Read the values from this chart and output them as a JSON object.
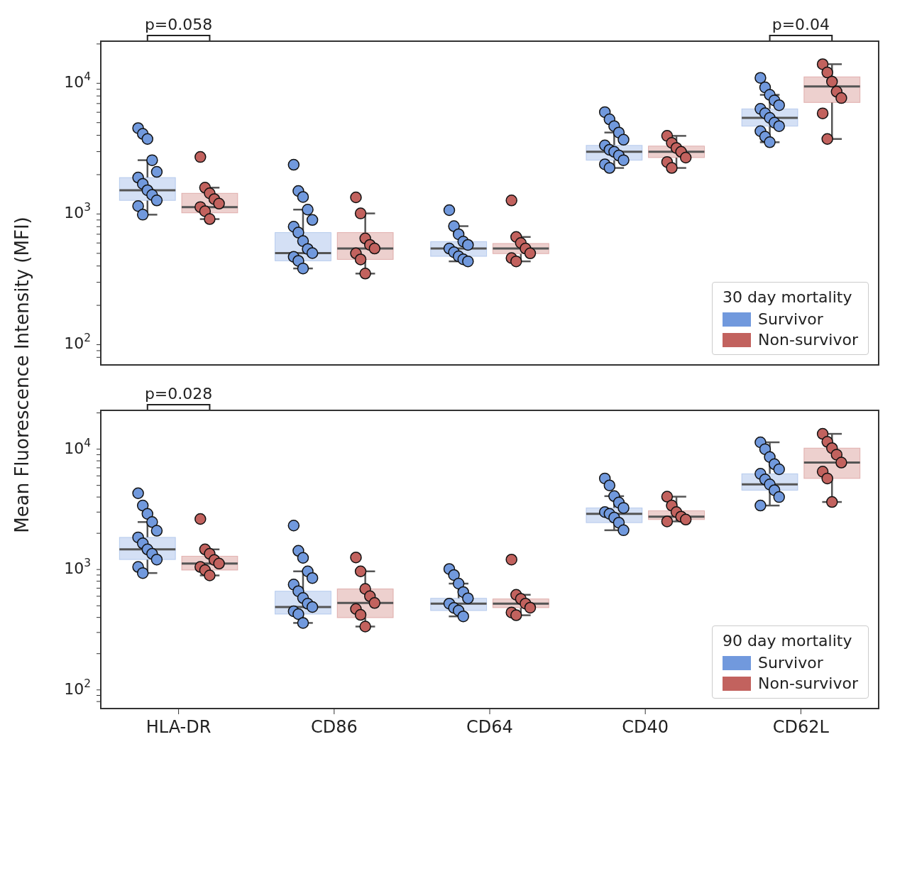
{
  "chart_data": [
    {
      "type": "box",
      "ylabel": "Mean Fluorescence Intensity (MFI)",
      "legend_title": "30 day mortality",
      "legend": "bottom right",
      "log": "y",
      "tick_labels": "y",
      "marker": "circle",
      "categories": [
        "HLA-DR",
        "CD86",
        "CD64",
        "CD40",
        "CD62L"
      ],
      "ylim": [
        70,
        21000
      ],
      "yticks": [
        {
          "value": 80,
          "label": null
        },
        {
          "value": 90,
          "label": null
        },
        {
          "value": 100,
          "label": "10$^{2}$"
        },
        {
          "value": 200,
          "label": null
        },
        {
          "value": 300,
          "label": null
        },
        {
          "value": 400,
          "label": null
        },
        {
          "value": 500,
          "label": null
        },
        {
          "value": 600,
          "label": null
        },
        {
          "value": 700,
          "label": null
        },
        {
          "value": 800,
          "label": null
        },
        {
          "value": 900,
          "label": null
        },
        {
          "value": 1000,
          "label": "10$^{3}$"
        },
        {
          "value": 2000,
          "label": null
        },
        {
          "value": 3000,
          "label": null
        },
        {
          "value": 4000,
          "label": null
        },
        {
          "value": 5000,
          "label": null
        },
        {
          "value": 6000,
          "label": null
        },
        {
          "value": 7000,
          "label": null
        },
        {
          "value": 8000,
          "label": null
        },
        {
          "value": 9000,
          "label": null
        },
        {
          "value": 10000,
          "label": "10$^{4}$"
        },
        {
          "value": 20000,
          "label": null
        }
      ],
      "annotations": [
        "p=0.058",
        "p=0.04"
      ],
      "series": [
        {
          "name": "Survivor",
          "color": "#7199dd",
          "boxes": [
            {
              "low": 988,
              "q1": 1270,
              "median": 1520,
              "q3": 1900,
              "high": 2580
            },
            {
              "low": 383,
              "q1": 438,
              "median": 502,
              "q3": 721,
              "high": 1080
            },
            {
              "low": 434,
              "q1": 474,
              "median": 544,
              "q3": 615,
              "high": 807
            },
            {
              "low": 2250,
              "q1": 2580,
              "median": 2990,
              "q3": 3350,
              "high": 4200
            },
            {
              "low": 3540,
              "q1": 4700,
              "median": 5440,
              "q3": 6370,
              "high": 8160
            }
          ]
        },
        {
          "name": "Non-survivor",
          "color": "#c2625e",
          "boxes": [
            {
              "low": 914,
              "q1": 1020,
              "median": 1130,
              "q3": 1440,
              "high": 1590
            },
            {
              "low": 350,
              "q1": 449,
              "median": 544,
              "q3": 721,
              "high": 1010
            },
            {
              "low": 434,
              "q1": 497,
              "median": 544,
              "q3": 595,
              "high": 667
            },
            {
              "low": 2250,
              "q1": 2700,
              "median": 2990,
              "q3": 3310,
              "high": 3960
            },
            {
              "low": 3750,
              "q1": 7130,
              "median": 9450,
              "q3": 11200,
              "high": 14000
            }
          ]
        },
        {
          "type": "scatter",
          "color": "#7199dd",
          "x": [
            "HLA-DR",
            "HLA-DR",
            "HLA-DR",
            "HLA-DR",
            "HLA-DR",
            "HLA-DR",
            "HLA-DR",
            "HLA-DR",
            "HLA-DR",
            "HLA-DR",
            "HLA-DR",
            "HLA-DR",
            "CD86",
            "CD86",
            "CD86",
            "CD86",
            "CD86",
            "CD86",
            "CD86",
            "CD86",
            "CD86",
            "CD86",
            "CD86",
            "CD86",
            "CD86",
            "CD64",
            "CD64",
            "CD64",
            "CD64",
            "CD64",
            "CD64",
            "CD64",
            "CD64",
            "CD64",
            "CD64",
            "CD40",
            "CD40",
            "CD40",
            "CD40",
            "CD40",
            "CD40",
            "CD40",
            "CD40",
            "CD40",
            "CD40",
            "CD40",
            "CD40",
            "CD62L",
            "CD62L",
            "CD62L",
            "CD62L",
            "CD62L",
            "CD62L",
            "CD62L",
            "CD62L",
            "CD62L",
            "CD62L",
            "CD62L",
            "CD62L",
            "CD62L"
          ],
          "values": [
            4540,
            4100,
            3750,
            2580,
            2100,
            1900,
            1700,
            1520,
            1400,
            1270,
            1150,
            988,
            2380,
            1500,
            1350,
            1080,
            900,
            800,
            721,
            620,
            540,
            502,
            470,
            438,
            383,
            1070,
            807,
            700,
            615,
            580,
            544,
            510,
            474,
            450,
            434,
            6020,
            5300,
            4700,
            4200,
            3700,
            3350,
            3100,
            2990,
            2800,
            2580,
            2400,
            2250,
            11000,
            9300,
            8160,
            7400,
            6800,
            6370,
            5900,
            5440,
            5000,
            4700,
            4300,
            3900,
            3540
          ]
        },
        {
          "type": "scatter",
          "color": "#c2625e",
          "x": [
            "HLA-DR",
            "HLA-DR",
            "HLA-DR",
            "HLA-DR",
            "HLA-DR",
            "HLA-DR",
            "HLA-DR",
            "HLA-DR",
            "CD86",
            "CD86",
            "CD86",
            "CD86",
            "CD86",
            "CD86",
            "CD86",
            "CD86",
            "CD64",
            "CD64",
            "CD64",
            "CD64",
            "CD64",
            "CD64",
            "CD64",
            "CD40",
            "CD40",
            "CD40",
            "CD40",
            "CD40",
            "CD40",
            "CD40",
            "CD62L",
            "CD62L",
            "CD62L",
            "CD62L",
            "CD62L",
            "CD62L",
            "CD62L"
          ],
          "values": [
            2730,
            1590,
            1440,
            1300,
            1200,
            1130,
            1050,
            914,
            1340,
            1010,
            650,
            580,
            544,
            500,
            449,
            350,
            1270,
            667,
            600,
            544,
            500,
            460,
            434,
            3960,
            3500,
            3200,
            2990,
            2700,
            2500,
            2250,
            14000,
            12100,
            10300,
            8630,
            7710,
            5890,
            3750
          ]
        }
      ]
    },
    {
      "type": "box",
      "legend_title": "90 day mortality",
      "legend": "bottom right",
      "log": "y",
      "marker": "circle",
      "categories": [
        "HLA-DR",
        "CD86",
        "CD64",
        "CD40",
        "CD62L"
      ],
      "ylim": [
        70,
        21000
      ],
      "yticks": [
        {
          "value": 80,
          "label": null
        },
        {
          "value": 90,
          "label": null
        },
        {
          "value": 100,
          "label": "10$^{2}$"
        },
        {
          "value": 200,
          "label": null
        },
        {
          "value": 300,
          "label": null
        },
        {
          "value": 400,
          "label": null
        },
        {
          "value": 500,
          "label": null
        },
        {
          "value": 600,
          "label": null
        },
        {
          "value": 700,
          "label": null
        },
        {
          "value": 800,
          "label": null
        },
        {
          "value": 900,
          "label": null
        },
        {
          "value": 1000,
          "label": "10$^{3}$"
        },
        {
          "value": 2000,
          "label": null
        },
        {
          "value": 3000,
          "label": null
        },
        {
          "value": 4000,
          "label": null
        },
        {
          "value": 5000,
          "label": null
        },
        {
          "value": 6000,
          "label": null
        },
        {
          "value": 7000,
          "label": null
        },
        {
          "value": 8000,
          "label": null
        },
        {
          "value": 9000,
          "label": null
        },
        {
          "value": 10000,
          "label": "10$^{4}$"
        },
        {
          "value": 20000,
          "label": null
        }
      ],
      "annotations": [
        "p=0.028"
      ],
      "series": [
        {
          "name": "Survivor",
          "color": "#7199dd",
          "boxes": [
            {
              "low": 935,
              "q1": 1210,
              "median": 1470,
              "q3": 1850,
              "high": 2480
            },
            {
              "low": 360,
              "q1": 426,
              "median": 488,
              "q3": 661,
              "high": 966
            },
            {
              "low": 408,
              "q1": 456,
              "median": 521,
              "q3": 577,
              "high": 764
            },
            {
              "low": 2120,
              "q1": 2450,
              "median": 2900,
              "q3": 3250,
              "high": 4070
            },
            {
              "low": 3400,
              "q1": 4560,
              "median": 5090,
              "q3": 6240,
              "high": 11400
            }
          ]
        },
        {
          "name": "Non-survivor",
          "color": "#c2625e",
          "boxes": [
            {
              "low": 893,
              "q1": 989,
              "median": 1120,
              "q3": 1290,
              "high": 1470
            },
            {
              "low": 336,
              "q1": 398,
              "median": 527,
              "q3": 690,
              "high": 966
            },
            {
              "low": 417,
              "q1": 482,
              "median": 521,
              "q3": 570,
              "high": 617
            },
            {
              "low": 2510,
              "q1": 2600,
              "median": 2750,
              "q3": 3080,
              "high": 4030
            },
            {
              "low": 3640,
              "q1": 5710,
              "median": 7730,
              "q3": 10200,
              "high": 13400
            }
          ]
        },
        {
          "type": "scatter",
          "color": "#7199dd",
          "x": [
            "HLA-DR",
            "HLA-DR",
            "HLA-DR",
            "HLA-DR",
            "HLA-DR",
            "HLA-DR",
            "HLA-DR",
            "HLA-DR",
            "HLA-DR",
            "HLA-DR",
            "HLA-DR",
            "HLA-DR",
            "CD86",
            "CD86",
            "CD86",
            "CD86",
            "CD86",
            "CD86",
            "CD86",
            "CD86",
            "CD86",
            "CD86",
            "CD86",
            "CD86",
            "CD86",
            "CD64",
            "CD64",
            "CD64",
            "CD64",
            "CD64",
            "CD64",
            "CD64",
            "CD64",
            "CD64",
            "CD40",
            "CD40",
            "CD40",
            "CD40",
            "CD40",
            "CD40",
            "CD40",
            "CD40",
            "CD40",
            "CD40",
            "CD62L",
            "CD62L",
            "CD62L",
            "CD62L",
            "CD62L",
            "CD62L",
            "CD62L",
            "CD62L",
            "CD62L",
            "CD62L",
            "CD62L"
          ],
          "values": [
            4300,
            3400,
            2900,
            2480,
            2100,
            1850,
            1650,
            1470,
            1350,
            1210,
            1050,
            935,
            2320,
            1430,
            1250,
            966,
            850,
            750,
            661,
            580,
            520,
            488,
            450,
            426,
            360,
            1010,
            900,
            764,
            650,
            577,
            521,
            480,
            456,
            408,
            5710,
            5000,
            4070,
            3600,
            3250,
            3000,
            2900,
            2700,
            2450,
            2120,
            11400,
            10000,
            8600,
            7500,
            6800,
            6240,
            5600,
            5090,
            4560,
            4000,
            3400
          ]
        },
        {
          "type": "scatter",
          "color": "#c2625e",
          "x": [
            "HLA-DR",
            "HLA-DR",
            "HLA-DR",
            "HLA-DR",
            "HLA-DR",
            "HLA-DR",
            "HLA-DR",
            "HLA-DR",
            "CD86",
            "CD86",
            "CD86",
            "CD86",
            "CD86",
            "CD86",
            "CD86",
            "CD86",
            "CD64",
            "CD64",
            "CD64",
            "CD64",
            "CD64",
            "CD64",
            "CD64",
            "CD40",
            "CD40",
            "CD40",
            "CD40",
            "CD40",
            "CD40",
            "CD62L",
            "CD62L",
            "CD62L",
            "CD62L",
            "CD62L",
            "CD62L",
            "CD62L",
            "CD62L"
          ],
          "values": [
            2630,
            1470,
            1350,
            1200,
            1120,
            1050,
            989,
            893,
            1260,
            966,
            690,
            600,
            527,
            470,
            420,
            336,
            1210,
            617,
            570,
            521,
            482,
            440,
            417,
            4030,
            3400,
            3000,
            2750,
            2600,
            2510,
            13400,
            11500,
            10200,
            9000,
            7730,
            6500,
            5710,
            3640
          ]
        }
      ]
    }
  ]
}
